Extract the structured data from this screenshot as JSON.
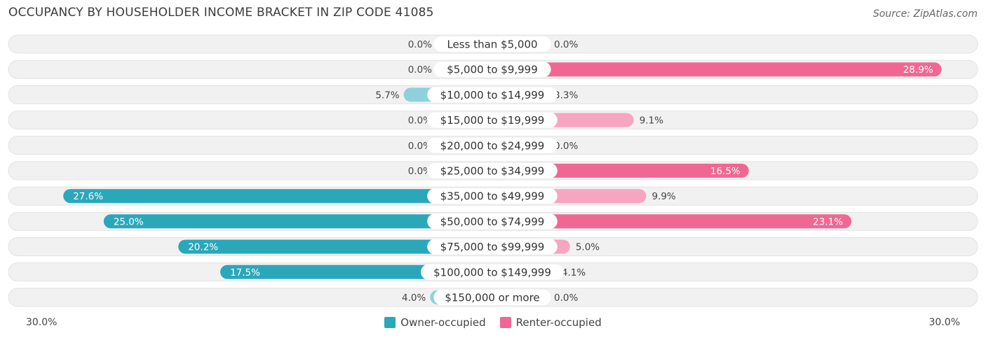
{
  "title": "OCCUPANCY BY HOUSEHOLDER INCOME BRACKET IN ZIP CODE 41085",
  "source": "Source: ZipAtlas.com",
  "colors": {
    "owner": "#2aa8ba",
    "owner_light": "#8dd1db",
    "renter": "#f06793",
    "renter_light": "#f7a5c0",
    "row_bg": "#f1f1f1"
  },
  "chart_data": {
    "type": "bar",
    "orientation": "horizontal-diverging",
    "axis_max": 30.0,
    "axis_labels": {
      "left": "30.0%",
      "right": "30.0%"
    },
    "legend_position": "bottom-center",
    "categories": [
      "Less than $5,000",
      "$5,000 to $9,999",
      "$10,000 to $14,999",
      "$15,000 to $19,999",
      "$20,000 to $24,999",
      "$25,000 to $34,999",
      "$35,000 to $49,999",
      "$50,000 to $74,999",
      "$75,000 to $99,999",
      "$100,000 to $149,999",
      "$150,000 or more"
    ],
    "series": [
      {
        "name": "Owner-occupied",
        "values": [
          0.0,
          0.0,
          5.7,
          0.0,
          0.0,
          0.0,
          27.6,
          25.0,
          20.2,
          17.5,
          4.0
        ],
        "labels": [
          "0.0%",
          "0.0%",
          "5.7%",
          "0.0%",
          "0.0%",
          "0.0%",
          "27.6%",
          "25.0%",
          "20.2%",
          "17.5%",
          "4.0%"
        ]
      },
      {
        "name": "Renter-occupied",
        "values": [
          0.0,
          28.9,
          3.3,
          9.1,
          0.0,
          16.5,
          9.9,
          23.1,
          5.0,
          4.1,
          0.0
        ],
        "labels": [
          "0.0%",
          "28.9%",
          "3.3%",
          "9.1%",
          "0.0%",
          "16.5%",
          "9.9%",
          "23.1%",
          "5.0%",
          "4.1%",
          "0.0%"
        ]
      }
    ]
  }
}
